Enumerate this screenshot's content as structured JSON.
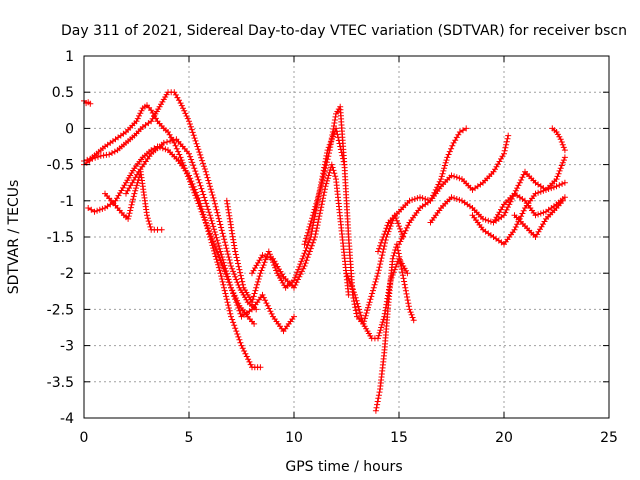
{
  "chart_data": {
    "type": "scatter",
    "title": "Day 311 of 2021, Sidereal Day-to-day VTEC variation (SDTVAR) for receiver bscn",
    "xlabel": "GPS time / hours",
    "ylabel": "SDTVAR / TECUs",
    "xlim": [
      0,
      25
    ],
    "ylim": [
      -4,
      1
    ],
    "xticks": [
      0,
      5,
      10,
      15,
      20,
      25
    ],
    "yticks": [
      -4,
      -3.5,
      -3,
      -2.5,
      -2,
      -1.5,
      -1,
      -0.5,
      0,
      0.5,
      1
    ],
    "xtick_labels": [
      "0",
      "5",
      "10",
      "15",
      "20",
      "25"
    ],
    "ytick_labels": [
      "-4",
      "-3.5",
      "-3",
      "-2.5",
      "-2",
      "-1.5",
      "-1",
      "-0.5",
      "0",
      "0.5",
      "1"
    ],
    "grid": true,
    "marker": "+",
    "marker_color": "#ff0000",
    "series": [
      {
        "name": "s1",
        "x": [
          0.0,
          0.1,
          0.2,
          0.3
        ],
        "y": [
          0.38,
          0.35,
          0.36,
          0.34
        ]
      },
      {
        "name": "s2",
        "x": [
          0.0,
          0.3,
          0.6,
          1.0,
          1.5,
          2.0,
          2.5,
          2.8,
          3.0,
          3.2,
          3.5,
          3.8,
          4.0,
          4.3,
          4.6,
          5.0,
          5.4,
          5.8,
          6.2,
          6.6,
          7.0,
          7.4,
          7.8,
          8.1
        ],
        "y": [
          -0.45,
          -0.42,
          -0.35,
          -0.25,
          -0.15,
          -0.05,
          0.1,
          0.28,
          0.32,
          0.25,
          0.1,
          0.0,
          -0.05,
          -0.2,
          -0.4,
          -0.7,
          -1.0,
          -1.3,
          -1.6,
          -1.9,
          -2.2,
          -2.45,
          -2.6,
          -2.7
        ]
      },
      {
        "name": "s3",
        "x": [
          0.0,
          0.4,
          0.8,
          1.2,
          1.6,
          2.0,
          2.4,
          2.8,
          3.2,
          3.6,
          4.0,
          4.3,
          4.6,
          5.0,
          5.4,
          5.8,
          6.2,
          6.6,
          7.0,
          7.4,
          7.8,
          8.2
        ],
        "y": [
          -0.5,
          -0.42,
          -0.38,
          -0.36,
          -0.3,
          -0.2,
          -0.1,
          0.02,
          0.1,
          0.3,
          0.5,
          0.5,
          0.35,
          0.1,
          -0.25,
          -0.6,
          -1.0,
          -1.45,
          -1.9,
          -2.2,
          -2.4,
          -2.5
        ]
      },
      {
        "name": "s4",
        "x": [
          0.2,
          0.5,
          1.0,
          1.5,
          2.0,
          2.4,
          2.8,
          3.2,
          3.5,
          4.0,
          4.5,
          5.0,
          5.5,
          6.0,
          6.5,
          7.0,
          7.5,
          8.0,
          8.4
        ],
        "y": [
          -1.1,
          -1.15,
          -1.1,
          -1.0,
          -0.75,
          -0.55,
          -0.4,
          -0.3,
          -0.25,
          -0.3,
          -0.45,
          -0.65,
          -1.0,
          -1.5,
          -2.0,
          -2.6,
          -3.0,
          -3.3,
          -3.3
        ]
      },
      {
        "name": "s5",
        "x": [
          1.0,
          1.3,
          1.6,
          1.9,
          2.1,
          2.4,
          2.7,
          3.0,
          3.2,
          3.5,
          3.7
        ],
        "y": [
          -0.9,
          -1.0,
          -1.1,
          -1.2,
          -1.25,
          -0.9,
          -0.6,
          -1.2,
          -1.4,
          -1.4,
          -1.4
        ]
      },
      {
        "name": "s6",
        "x": [
          2.0,
          2.6,
          3.2,
          3.8,
          4.4,
          5.0,
          5.5,
          6.0,
          6.5,
          7.0,
          7.5,
          8.0,
          8.5,
          9.0,
          9.5,
          10.0
        ],
        "y": [
          -0.9,
          -0.6,
          -0.35,
          -0.2,
          -0.15,
          -0.35,
          -0.75,
          -1.2,
          -1.7,
          -2.2,
          -2.6,
          -2.5,
          -2.3,
          -2.6,
          -2.8,
          -2.6
        ]
      },
      {
        "name": "s7",
        "x": [
          6.8,
          7.2,
          7.6,
          8.0,
          8.4,
          8.8,
          9.2,
          9.6,
          10.0,
          10.4,
          10.8,
          11.2,
          11.6,
          12.0,
          12.4
        ],
        "y": [
          -1.0,
          -1.7,
          -2.2,
          -2.4,
          -2.0,
          -1.7,
          -2.0,
          -2.2,
          -2.1,
          -1.8,
          -1.5,
          -0.9,
          -0.3,
          0.0,
          -0.5
        ]
      },
      {
        "name": "s8",
        "x": [
          8.0,
          8.5,
          9.0,
          9.5,
          10.0,
          10.5,
          11.0,
          11.5,
          11.8,
          12.0,
          12.3,
          12.6
        ],
        "y": [
          -2.0,
          -1.75,
          -1.8,
          -2.05,
          -2.2,
          -1.9,
          -1.5,
          -0.8,
          -0.5,
          -0.7,
          -1.5,
          -2.3
        ]
      },
      {
        "name": "s9",
        "x": [
          10.5,
          10.9,
          11.3,
          11.7,
          12.0,
          12.2,
          12.4,
          12.6,
          12.8,
          13.0,
          13.3,
          13.6,
          14.0,
          14.4,
          14.8,
          15.2
        ],
        "y": [
          -1.6,
          -1.2,
          -0.8,
          -0.3,
          0.2,
          0.3,
          -0.5,
          -1.5,
          -2.3,
          -2.6,
          -2.7,
          -2.4,
          -2.0,
          -1.5,
          -1.2,
          -1.5
        ]
      },
      {
        "name": "s10",
        "x": [
          12.5,
          12.9,
          13.3,
          13.7,
          14.0,
          14.3,
          14.6,
          15.0,
          15.4
        ],
        "y": [
          -2.0,
          -2.3,
          -2.7,
          -2.9,
          -2.9,
          -2.6,
          -2.1,
          -1.8,
          -2.0
        ]
      },
      {
        "name": "s11",
        "x": [
          13.9,
          14.1,
          14.3,
          14.5,
          14.7,
          14.9,
          15.1,
          15.3,
          15.5,
          15.7
        ],
        "y": [
          -3.9,
          -3.6,
          -3.1,
          -2.4,
          -1.8,
          -1.6,
          -1.9,
          -2.2,
          -2.5,
          -2.65
        ]
      },
      {
        "name": "s12",
        "x": [
          14.0,
          14.5,
          15.0,
          15.5,
          16.0,
          16.5,
          17.0,
          17.3,
          17.6,
          17.9,
          18.2
        ],
        "y": [
          -1.7,
          -1.3,
          -1.15,
          -1.0,
          -0.95,
          -1.0,
          -0.7,
          -0.4,
          -0.2,
          -0.05,
          0.0
        ]
      },
      {
        "name": "s13",
        "x": [
          15.0,
          15.5,
          16.0,
          16.5,
          17.0,
          17.5,
          18.0,
          18.5,
          19.0,
          19.5,
          20.0,
          20.2
        ],
        "y": [
          -1.6,
          -1.3,
          -1.1,
          -1.0,
          -0.8,
          -0.65,
          -0.7,
          -0.85,
          -0.75,
          -0.6,
          -0.35,
          -0.1
        ]
      },
      {
        "name": "s14",
        "x": [
          16.5,
          17.0,
          17.5,
          18.0,
          18.5,
          19.0,
          19.5,
          20.0,
          20.5,
          21.0,
          21.5,
          22.0,
          22.5,
          22.9
        ],
        "y": [
          -1.3,
          -1.1,
          -0.95,
          -1.0,
          -1.1,
          -1.25,
          -1.3,
          -1.05,
          -0.9,
          -1.0,
          -1.2,
          -1.15,
          -1.05,
          -0.95
        ]
      },
      {
        "name": "s15",
        "x": [
          18.5,
          19.0,
          19.5,
          20.0,
          20.5,
          21.0,
          21.5,
          22.0,
          22.5,
          22.9
        ],
        "y": [
          -1.2,
          -1.4,
          -1.5,
          -1.6,
          -1.4,
          -1.1,
          -0.9,
          -0.85,
          -0.8,
          -0.75
        ]
      },
      {
        "name": "s16",
        "x": [
          19.5,
          20.0,
          20.5,
          21.0,
          21.5,
          22.0,
          22.5,
          22.9
        ],
        "y": [
          -1.3,
          -1.2,
          -0.9,
          -0.6,
          -0.75,
          -0.85,
          -0.7,
          -0.4
        ]
      },
      {
        "name": "s17",
        "x": [
          20.5,
          21.0,
          21.5,
          22.0,
          22.5,
          22.8
        ],
        "y": [
          -1.2,
          -1.35,
          -1.5,
          -1.25,
          -1.1,
          -1.0
        ]
      },
      {
        "name": "s18",
        "x": [
          22.3,
          22.5,
          22.7,
          22.9
        ],
        "y": [
          0.0,
          -0.05,
          -0.15,
          -0.3
        ]
      }
    ]
  }
}
